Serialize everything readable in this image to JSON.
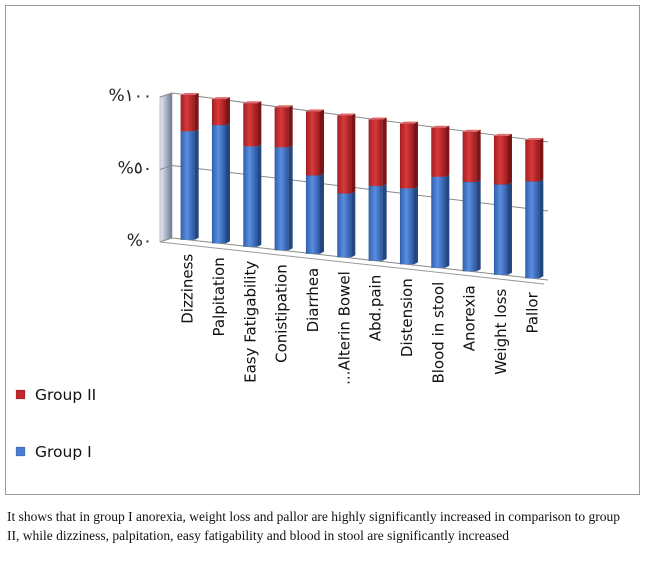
{
  "chart_data": {
    "type": "bar",
    "stacked": true,
    "categories": [
      "Dizziness",
      "Palpitation",
      "Easy Fatigability",
      "Conistipation",
      "Diarrhea",
      "...Alterin Bowel",
      "Abd.pain",
      "Distension",
      "Blood in stool",
      "Anorexia",
      "Weight loss",
      "Pallor"
    ],
    "series": [
      {
        "name": "Group I",
        "color": "#4a7cd0",
        "values": [
          75,
          82,
          70,
          72,
          55,
          45,
          53,
          54,
          65,
          64,
          65,
          70
        ]
      },
      {
        "name": "Group II",
        "color": "#c0282c",
        "values": [
          25,
          18,
          30,
          28,
          45,
          55,
          47,
          46,
          35,
          36,
          35,
          30
        ]
      }
    ],
    "y_ticks": [
      "%١٠٠",
      "%٥٠",
      "%٠"
    ],
    "ylim": [
      0,
      100
    ],
    "grid": true,
    "legend": "left",
    "legend_order": [
      "Group II",
      "Group I"
    ]
  },
  "caption": "It shows that in group I anorexia, weight loss and pallor are highly significantly increased in comparison to group II, while dizziness, palpitation, easy fatigability and blood in stool are significantly increased"
}
